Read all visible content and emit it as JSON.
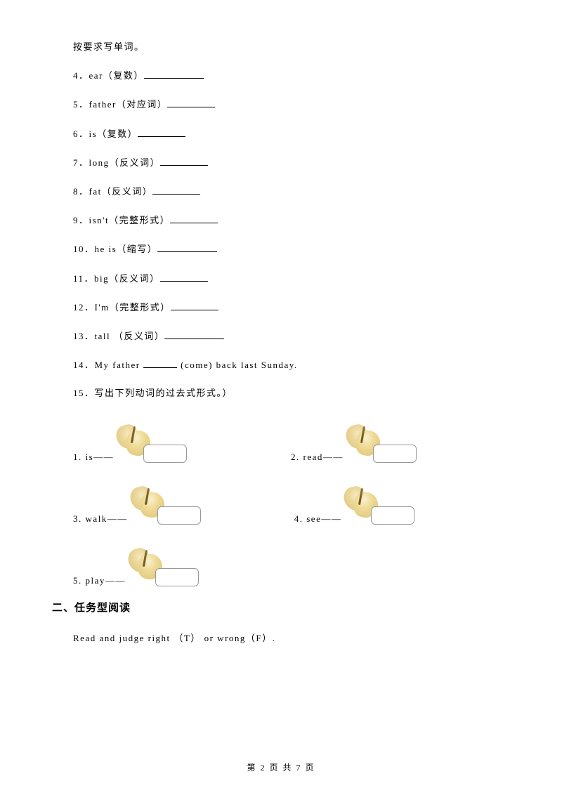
{
  "intro": "按要求写单词。",
  "questions": {
    "q4": {
      "num": "4",
      "text": "．ear（复数）",
      "blank_class": "blank-long"
    },
    "q5": {
      "num": "5",
      "text": "．father（对应词）",
      "blank_class": "blank-med"
    },
    "q6": {
      "num": "6",
      "text": "．is（复数）",
      "blank_class": "blank-med"
    },
    "q7": {
      "num": "7",
      "text": "．long（反义词）",
      "blank_class": "blank-med"
    },
    "q8": {
      "num": "8",
      "text": "．fat（反义词）",
      "blank_class": "blank-med"
    },
    "q9": {
      "num": "9",
      "text": "．isn't（完整形式）",
      "blank_class": "blank-med"
    },
    "q10": {
      "num": "10",
      "text": "．he is（缩写）",
      "blank_class": "blank-long"
    },
    "q11": {
      "num": "11",
      "text": "．big（反义词）",
      "blank_class": "blank-med"
    },
    "q12": {
      "num": "12",
      "text": "．I'm（完整形式）",
      "blank_class": "blank-med"
    },
    "q13": {
      "num": "13",
      "text": "．tall （反义词）",
      "blank_class": "blank-long"
    },
    "q14_pre": "14",
    "q14_text_a": "．My father ",
    "q14_text_b": " (come) back last Sunday.",
    "q15": {
      "num": "15",
      "text": "．写出下列动词的过去式形式。）"
    }
  },
  "past_tense": {
    "items": [
      {
        "num": "1.",
        "word": "is——"
      },
      {
        "num": "2.",
        "word": "read——"
      },
      {
        "num": "3.",
        "word": "walk——"
      },
      {
        "num": "4.",
        "word": "see——"
      },
      {
        "num": "5.",
        "word": "play——"
      }
    ]
  },
  "section2_title": "二、任务型阅读",
  "read_judge": "Read and judge right （T） or wrong（F）.",
  "footer": {
    "pre": "第 ",
    "cur": "2",
    "mid": " 页 共 ",
    "total": "7",
    "post": " 页"
  },
  "colors": {
    "text": "#000000",
    "bg": "#ffffff",
    "butterfly_light": "#f8f0d0",
    "butterfly_dark": "#d4b860",
    "box_border": "#999999"
  }
}
